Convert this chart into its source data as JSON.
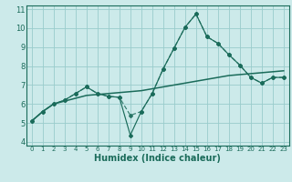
{
  "xlabel": "Humidex (Indice chaleur)",
  "bg_color": "#cceaea",
  "grid_color": "#99cccc",
  "line_color": "#1a6b5a",
  "xlim": [
    -0.5,
    23.5
  ],
  "ylim": [
    3.8,
    11.2
  ],
  "xticks": [
    0,
    1,
    2,
    3,
    4,
    5,
    6,
    7,
    8,
    9,
    10,
    11,
    12,
    13,
    14,
    15,
    16,
    17,
    18,
    19,
    20,
    21,
    22,
    23
  ],
  "yticks": [
    4,
    5,
    6,
    7,
    8,
    9,
    10,
    11
  ],
  "line1_x": [
    0,
    1,
    2,
    3,
    4,
    5,
    6,
    7,
    8,
    9,
    10,
    11,
    12,
    13,
    14,
    15,
    16,
    17,
    18,
    19,
    20,
    21,
    22,
    23
  ],
  "line1_y": [
    5.1,
    5.6,
    6.0,
    6.2,
    6.55,
    6.9,
    6.55,
    6.4,
    6.35,
    4.35,
    5.6,
    6.55,
    7.85,
    8.95,
    10.05,
    10.75,
    9.55,
    9.2,
    8.6,
    8.05,
    7.4,
    7.1,
    7.4,
    7.4
  ],
  "line2_x": [
    0,
    1,
    2,
    3,
    4,
    5,
    6,
    7,
    8,
    9,
    10,
    11,
    12,
    13,
    14,
    15,
    16,
    17,
    18,
    19,
    20,
    21,
    22,
    23
  ],
  "line2_y": [
    5.1,
    5.6,
    6.0,
    6.15,
    6.3,
    6.45,
    6.5,
    6.55,
    6.6,
    6.65,
    6.7,
    6.8,
    6.9,
    7.0,
    7.1,
    7.2,
    7.3,
    7.4,
    7.5,
    7.55,
    7.6,
    7.65,
    7.7,
    7.75
  ],
  "line3_x": [
    0,
    1,
    2,
    3,
    4,
    5,
    6,
    7,
    8,
    9,
    10,
    11,
    12,
    13,
    14,
    15,
    16,
    17,
    18,
    19,
    20,
    21,
    22,
    23
  ],
  "line3_y": [
    5.1,
    5.6,
    6.0,
    6.2,
    6.55,
    6.9,
    6.55,
    6.4,
    6.35,
    5.4,
    5.6,
    6.55,
    7.85,
    8.95,
    10.05,
    10.75,
    9.55,
    9.2,
    8.6,
    8.05,
    7.4,
    7.1,
    7.4,
    7.4
  ]
}
